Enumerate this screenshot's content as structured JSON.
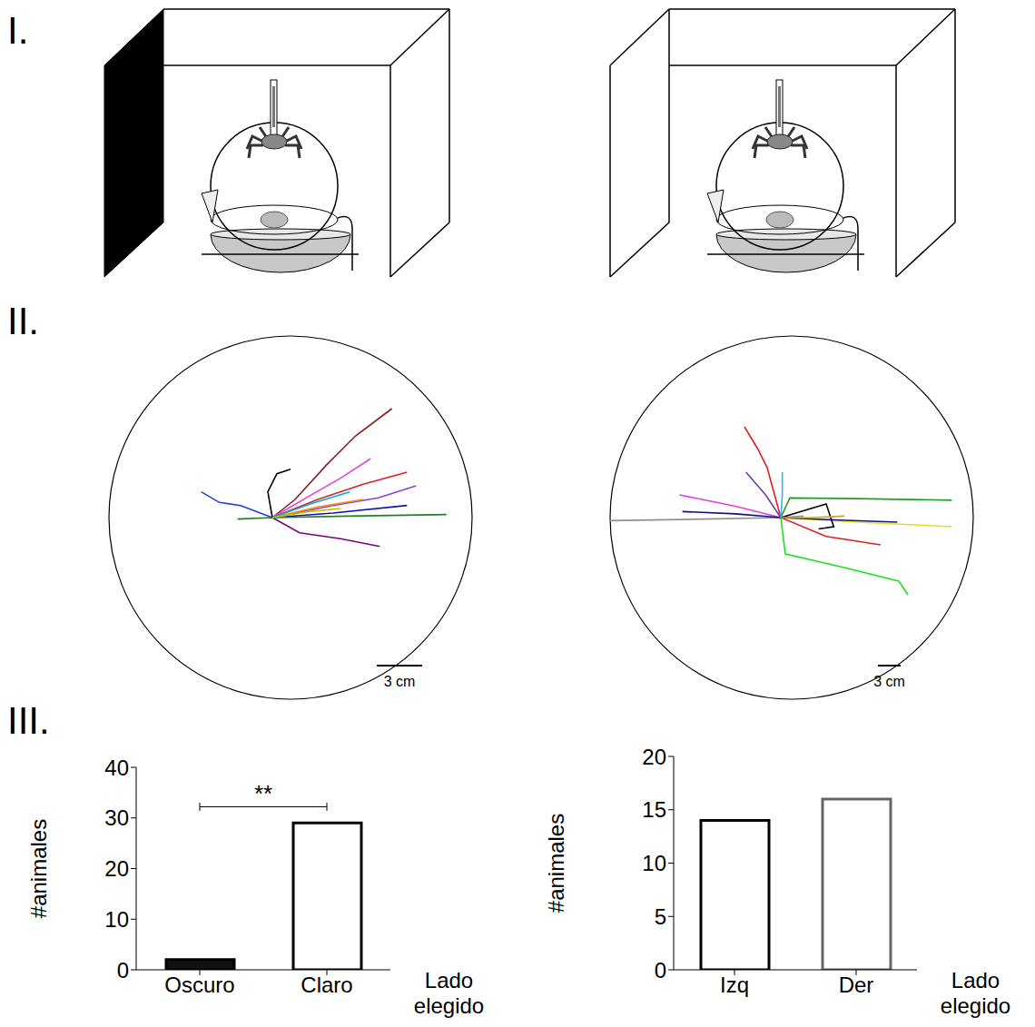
{
  "panel_labels": [
    "I.",
    "II.",
    "III."
  ],
  "arenas": [
    {
      "arena_radius": 12,
      "scale_bar": {
        "value": 3,
        "label": "3 cm"
      },
      "tracks": [
        {
          "color": "#8b1a1a",
          "points": [
            [
              0,
              0
            ],
            [
              1.5,
              1.2
            ],
            [
              3.6,
              3.5
            ],
            [
              5.5,
              5.4
            ],
            [
              7.9,
              7.2
            ]
          ]
        },
        {
          "color": "#e040e0",
          "points": [
            [
              0,
              0
            ],
            [
              2.4,
              1.4
            ],
            [
              4.5,
              2.6
            ],
            [
              6.5,
              3.9
            ]
          ]
        },
        {
          "color": "#e02020",
          "points": [
            [
              0,
              0
            ],
            [
              3,
              1.2
            ],
            [
              6,
              2.2
            ],
            [
              8.9,
              3.0
            ]
          ]
        },
        {
          "color": "#9040d0",
          "points": [
            [
              0,
              0
            ],
            [
              4,
              0.8
            ],
            [
              7,
              1.3
            ],
            [
              9.5,
              2.1
            ]
          ]
        },
        {
          "color": "#1010c0",
          "points": [
            [
              0,
              0
            ],
            [
              4,
              0.3
            ],
            [
              8.9,
              0.8
            ]
          ]
        },
        {
          "color": "#208020",
          "points": [
            [
              -2.3,
              -0.1
            ],
            [
              0,
              0
            ],
            [
              5,
              0.1
            ],
            [
              11.5,
              0.2
            ]
          ]
        },
        {
          "color": "#2040e0",
          "points": [
            [
              0,
              0
            ],
            [
              -2.1,
              0.8
            ],
            [
              -3.5,
              1.0
            ],
            [
              -4.7,
              1.7
            ]
          ]
        },
        {
          "color": "#000000",
          "points": [
            [
              0,
              0
            ],
            [
              -0.3,
              1.7
            ],
            [
              0.3,
              2.9
            ],
            [
              1.2,
              3.2
            ]
          ]
        },
        {
          "color": "#800080",
          "points": [
            [
              0,
              0
            ],
            [
              1.8,
              -1.0
            ],
            [
              4.5,
              -1.4
            ],
            [
              7.1,
              -1.9
            ]
          ]
        },
        {
          "color": "#ff8c00",
          "points": [
            [
              0,
              0
            ],
            [
              3,
              0.7
            ],
            [
              6.0,
              1.2
            ]
          ]
        },
        {
          "color": "#00b0d0",
          "points": [
            [
              0,
              0
            ],
            [
              2.5,
              0.9
            ],
            [
              5.1,
              1.7
            ]
          ]
        },
        {
          "color": "#c0c000",
          "points": [
            [
              0,
              0
            ],
            [
              2.5,
              0.4
            ],
            [
              4.5,
              0.6
            ]
          ]
        }
      ]
    },
    {
      "arena_radius": 24,
      "scale_bar": {
        "value": 3,
        "label": "3 cm"
      },
      "tracks": [
        {
          "color": "#20a020",
          "points": [
            [
              0,
              0
            ],
            [
              1.2,
              2.6
            ],
            [
              10,
              2.5
            ],
            [
              22.6,
              2.3
            ]
          ]
        },
        {
          "color": "#909090",
          "points": [
            [
              3,
              0.2
            ],
            [
              0,
              0
            ],
            [
              -10,
              -0.2
            ],
            [
              -22.6,
              -0.4
            ]
          ]
        },
        {
          "color": "#e0e020",
          "points": [
            [
              0,
              0
            ],
            [
              10,
              -0.6
            ],
            [
              22.6,
              -1.2
            ]
          ]
        },
        {
          "color": "#e02020",
          "points": [
            [
              -4.8,
              12.0
            ],
            [
              -3,
              9
            ],
            [
              -1.8,
              6.6
            ],
            [
              0,
              0
            ],
            [
              6,
              -2.5
            ],
            [
              13.2,
              -3.6
            ]
          ]
        },
        {
          "color": "#20e020",
          "points": [
            [
              0,
              0
            ],
            [
              0.6,
              -4.8
            ],
            [
              8,
              -6.5
            ],
            [
              15.6,
              -8.4
            ],
            [
              16.8,
              -10.2
            ]
          ]
        },
        {
          "color": "#e040e0",
          "points": [
            [
              0,
              0
            ],
            [
              -6,
              1.5
            ],
            [
              -13.4,
              3.0
            ]
          ]
        },
        {
          "color": "#101090",
          "points": [
            [
              -13,
              0.8
            ],
            [
              -6,
              0.5
            ],
            [
              0,
              0
            ],
            [
              7,
              -0.3
            ],
            [
              15.4,
              -0.6
            ]
          ]
        },
        {
          "color": "#6a3fb0",
          "points": [
            [
              0,
              0
            ],
            [
              -2,
              3
            ],
            [
              -4.6,
              6.0
            ]
          ]
        },
        {
          "color": "#000000",
          "points": [
            [
              0,
              0
            ],
            [
              6.0,
              1.8
            ],
            [
              7.0,
              -1.2
            ],
            [
              5,
              -1.5
            ]
          ]
        },
        {
          "color": "#30b0ff",
          "points": [
            [
              0,
              0
            ],
            [
              0.2,
              3
            ],
            [
              0.2,
              6.0
            ]
          ]
        },
        {
          "color": "#d4a017",
          "points": [
            [
              0,
              0
            ],
            [
              4,
              0
            ],
            [
              8.4,
              0.2
            ]
          ]
        }
      ]
    }
  ],
  "chart_data": [
    {
      "type": "bar",
      "ylabel": "#animales",
      "xlabel": "Lado elegido",
      "categories": [
        "Oscuro",
        "Claro"
      ],
      "values": [
        2,
        29
      ],
      "colors": [
        "#111111",
        "#ffffff"
      ],
      "ylim": [
        0,
        40
      ],
      "yticks": [
        0,
        10,
        20,
        30,
        40
      ],
      "grid": false,
      "annotations": [
        {
          "text": "**",
          "from": "Oscuro",
          "to": "Claro"
        }
      ]
    },
    {
      "type": "bar",
      "ylabel": "#animales",
      "xlabel": "Lado elegido",
      "categories": [
        "Izq",
        "Der"
      ],
      "values": [
        14,
        16
      ],
      "colors": [
        "#ffffff",
        "#ffffff"
      ],
      "ylim": [
        0,
        20
      ],
      "yticks": [
        0,
        5,
        10,
        15,
        20
      ],
      "grid": false
    }
  ]
}
